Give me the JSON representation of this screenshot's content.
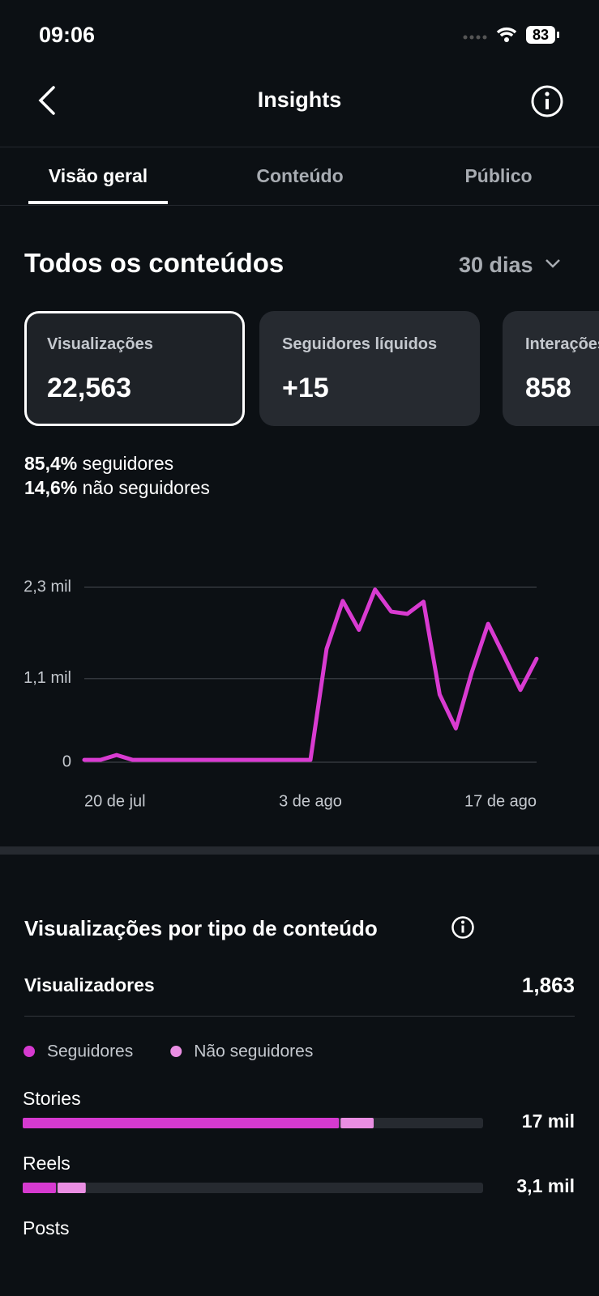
{
  "status_bar": {
    "time": "09:06",
    "battery": "83"
  },
  "header": {
    "title": "Insights"
  },
  "tabs": [
    "Visão geral",
    "Conteúdo",
    "Público"
  ],
  "overview": {
    "title": "Todos os conteúdos",
    "period": "30 dias",
    "cards": [
      {
        "label": "Visualizações",
        "value": "22,563"
      },
      {
        "label": "Seguidores líquidos",
        "value": "+15"
      },
      {
        "label": "Interações",
        "value": "858"
      }
    ],
    "breakdown": [
      {
        "percent": "85,4%",
        "label": "seguidores"
      },
      {
        "percent": "14,6%",
        "label": "não seguidores"
      }
    ]
  },
  "chart_data": [
    {
      "type": "line",
      "color": "#d93bd1",
      "grid": true,
      "categories": [
        "20 de jul",
        null,
        null,
        null,
        null,
        null,
        null,
        null,
        null,
        null,
        null,
        null,
        null,
        null,
        "3 de ago",
        null,
        null,
        null,
        null,
        null,
        null,
        null,
        null,
        null,
        null,
        null,
        null,
        null,
        "17 de ago"
      ],
      "values": [
        30,
        30,
        95,
        30,
        30,
        30,
        30,
        30,
        30,
        30,
        30,
        30,
        30,
        30,
        30,
        1490,
        2120,
        1740,
        2270,
        1980,
        1950,
        2110,
        890,
        445,
        1190,
        1820,
        1390,
        950,
        1360
      ],
      "ylim": [
        0,
        2300
      ],
      "yticks": [
        0,
        {
          "value": 1100,
          "label": "1,1 mil"
        },
        {
          "value": 2300,
          "label": "2,3 mil"
        }
      ]
    },
    {
      "type": "bar",
      "orientation": "horizontal",
      "stacked": true,
      "categories": [
        "Stories",
        "Reels",
        "Posts"
      ],
      "xlim": [
        0,
        22563
      ],
      "series": [
        {
          "name": "Seguidores",
          "color": "#d63ad0",
          "values": [
            15500,
            1630,
            null
          ]
        },
        {
          "name": "Não seguidores",
          "color": "#ea8ee3",
          "values": [
            1700,
            1460,
            null
          ]
        }
      ],
      "value_labels": [
        "17 mil",
        "3,1 mil",
        null
      ]
    }
  ],
  "content_type": {
    "title": "Visualizações por tipo de conteúdo",
    "viewers_label": "Visualizadores",
    "viewers_value": "1,863"
  }
}
